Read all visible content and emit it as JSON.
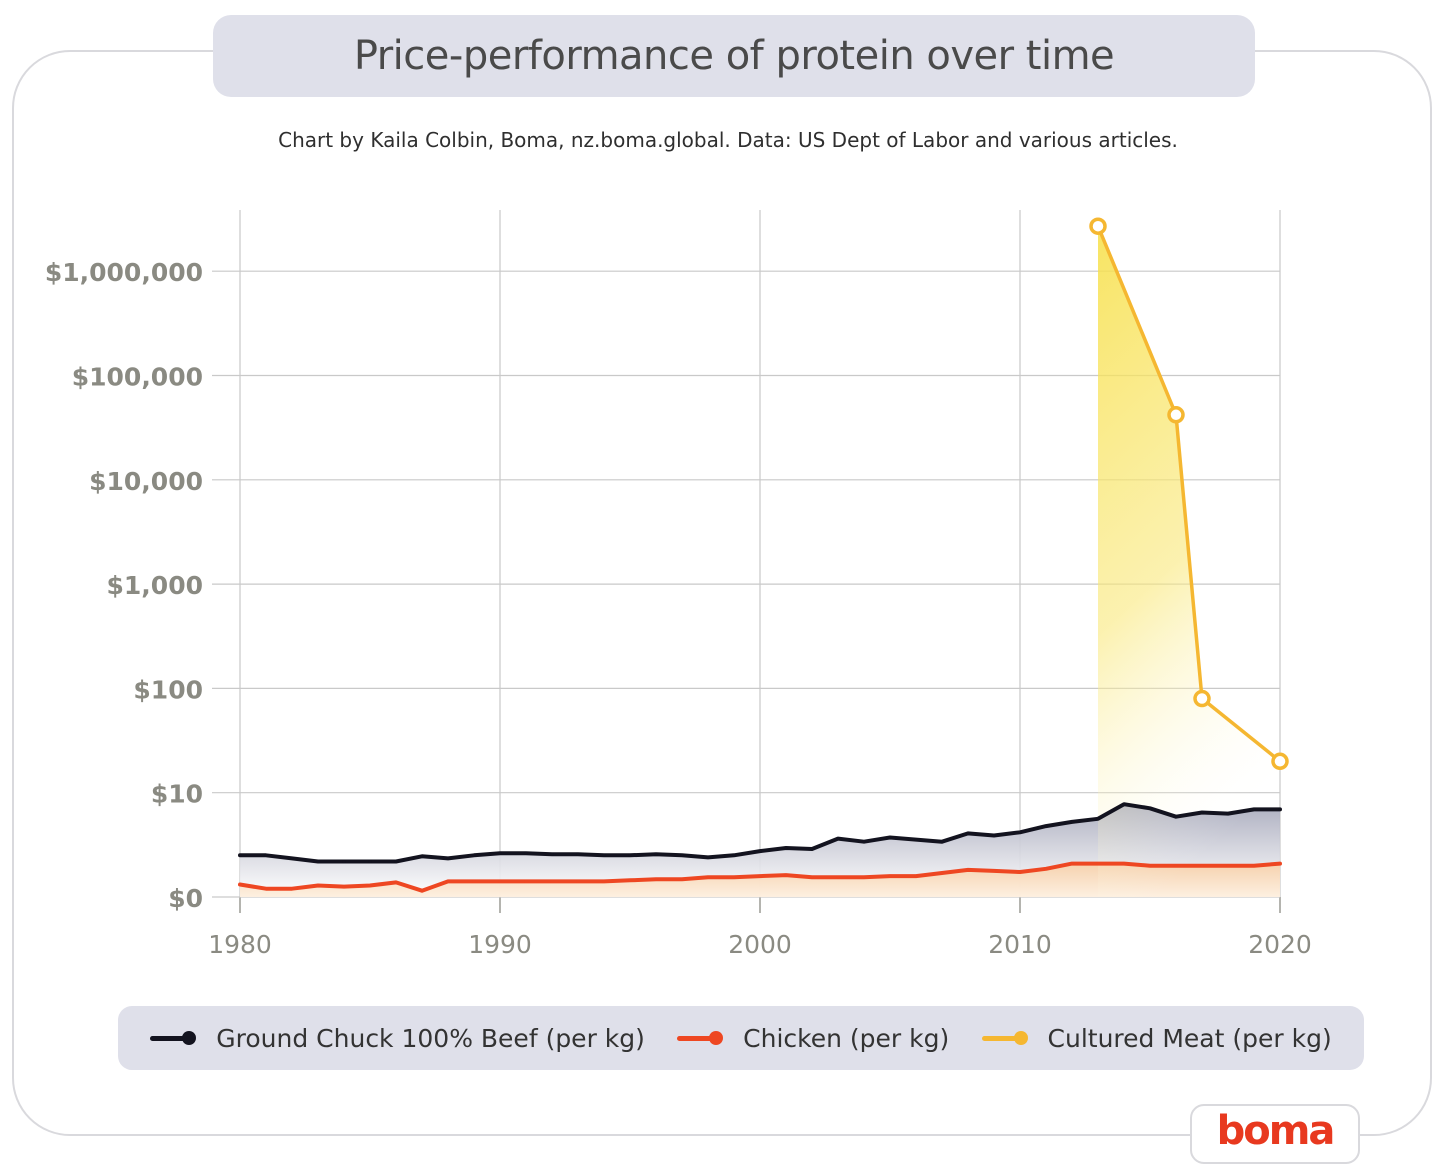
{
  "title": "Price-performance of protein over time",
  "subtitle": "Chart by Kaila Colbin, Boma, nz.boma.global. Data: US Dept of Labor and various articles.",
  "logo": "boma",
  "colors": {
    "beef": "#13131f",
    "chicken": "#ee4722",
    "cultured": "#f5b731",
    "grid": "#c9c9c9",
    "axis_text": "#8a8a82",
    "beef_fill": "#a9abbd",
    "chicken_fill": "#f7c9a8",
    "cultured_fill": "#f7e04a"
  },
  "legend": [
    {
      "label": "Ground Chuck 100% Beef (per kg)",
      "color": "#13131f"
    },
    {
      "label": "Chicken (per kg)",
      "color": "#ee4722"
    },
    {
      "label": "Cultured Meat (per kg)",
      "color": "#f5b731"
    }
  ],
  "chart_data": {
    "type": "line",
    "title": "Price-performance of protein over time",
    "xlabel": "",
    "ylabel": "",
    "xlim": [
      1980,
      2020
    ],
    "x_ticks": [
      "1980",
      "1990",
      "2000",
      "2010",
      "2020"
    ],
    "y_ticks": [
      "$0",
      "$10",
      "$100",
      "$1,000",
      "$10,000",
      "$100,000",
      "$1,000,000"
    ],
    "y_scale": "log",
    "grid": true,
    "legend_position": "bottom",
    "series": [
      {
        "name": "Ground Chuck 100% Beef (per kg)",
        "x": [
          1980,
          1981,
          1982,
          1983,
          1984,
          1985,
          1986,
          1987,
          1988,
          1989,
          1990,
          1991,
          1992,
          1993,
          1994,
          1995,
          1996,
          1997,
          1998,
          1999,
          2000,
          2001,
          2002,
          2003,
          2004,
          2005,
          2006,
          2007,
          2008,
          2009,
          2010,
          2011,
          2012,
          2013,
          2014,
          2015,
          2016,
          2017,
          2018,
          2019,
          2020
        ],
        "y": [
          4.0,
          4.0,
          3.7,
          3.4,
          3.4,
          3.4,
          3.4,
          3.9,
          3.7,
          4.0,
          4.2,
          4.2,
          4.1,
          4.1,
          4.0,
          4.0,
          4.1,
          4.0,
          3.8,
          4.0,
          4.4,
          4.7,
          4.6,
          5.6,
          5.3,
          5.7,
          5.5,
          5.3,
          6.1,
          5.9,
          6.2,
          6.8,
          7.2,
          7.5,
          8.9,
          8.5,
          7.7,
          8.1,
          8.0,
          8.4,
          8.4
        ]
      },
      {
        "name": "Chicken (per kg)",
        "x": [
          1980,
          1981,
          1982,
          1983,
          1984,
          1985,
          1986,
          1987,
          1988,
          1989,
          1990,
          1991,
          1992,
          1993,
          1994,
          1995,
          1996,
          1997,
          1998,
          1999,
          2000,
          2001,
          2002,
          2003,
          2004,
          2005,
          2006,
          2007,
          2008,
          2009,
          2010,
          2011,
          2012,
          2013,
          2014,
          2015,
          2016,
          2017,
          2018,
          2019,
          2020
        ],
        "y": [
          1.2,
          0.8,
          0.8,
          1.1,
          1.0,
          1.1,
          1.4,
          0.6,
          1.5,
          1.5,
          1.5,
          1.5,
          1.5,
          1.5,
          1.5,
          1.6,
          1.7,
          1.7,
          1.9,
          1.9,
          2.0,
          2.1,
          1.9,
          1.9,
          1.9,
          2.0,
          2.0,
          2.3,
          2.6,
          2.5,
          2.4,
          2.7,
          3.2,
          3.2,
          3.2,
          3.0,
          3.0,
          3.0,
          3.0,
          3.0,
          3.2
        ]
      },
      {
        "name": "Cultured Meat (per kg)",
        "x": [
          2013,
          2016,
          2017,
          2020
        ],
        "y": [
          2700000,
          42000,
          80,
          20
        ]
      }
    ]
  }
}
